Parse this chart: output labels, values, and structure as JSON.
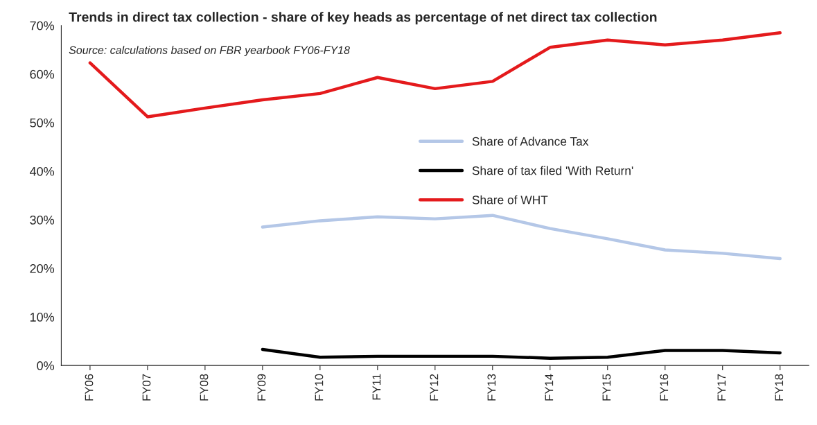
{
  "chart_data": {
    "type": "line",
    "title": "Trends in direct tax collection - share of key heads as percentage of net direct tax collection",
    "subtitle": "Source: calculations based on FBR yearbook FY06-FY18",
    "categories": [
      "FY06",
      "FY07",
      "FY08",
      "FY09",
      "FY10",
      "FY11",
      "FY12",
      "FY13",
      "FY14",
      "FY15",
      "FY16",
      "FY17",
      "FY18"
    ],
    "series": [
      {
        "name": "Share of Advance Tax",
        "color": "#b4c7e7",
        "values": [
          null,
          null,
          null,
          28.5,
          29.8,
          30.6,
          30.2,
          30.9,
          28.2,
          26.1,
          23.8,
          23.1,
          22.0
        ]
      },
      {
        "name": "Share of tax filed 'With Return'",
        "color": "#000000",
        "values": [
          null,
          null,
          null,
          3.3,
          1.7,
          1.9,
          1.9,
          1.9,
          1.5,
          1.7,
          3.1,
          3.1,
          2.6
        ]
      },
      {
        "name": "Share of WHT",
        "color": "#e41a1c",
        "values": [
          62.3,
          51.2,
          53.0,
          54.7,
          56.0,
          59.3,
          57.0,
          58.5,
          65.5,
          67.0,
          66.0,
          67.0,
          68.5
        ]
      }
    ],
    "ylim": [
      0,
      70
    ],
    "yticks": [
      {
        "value": 0,
        "label": "0%"
      },
      {
        "value": 10,
        "label": "10%"
      },
      {
        "value": 20,
        "label": "20%"
      },
      {
        "value": 30,
        "label": "30%"
      },
      {
        "value": 40,
        "label": "40%"
      },
      {
        "value": 50,
        "label": "50%"
      },
      {
        "value": 60,
        "label": "60%"
      },
      {
        "value": 70,
        "label": "70%"
      }
    ],
    "grid": false,
    "legend": "right",
    "marker": "none",
    "line_style": "solid"
  }
}
